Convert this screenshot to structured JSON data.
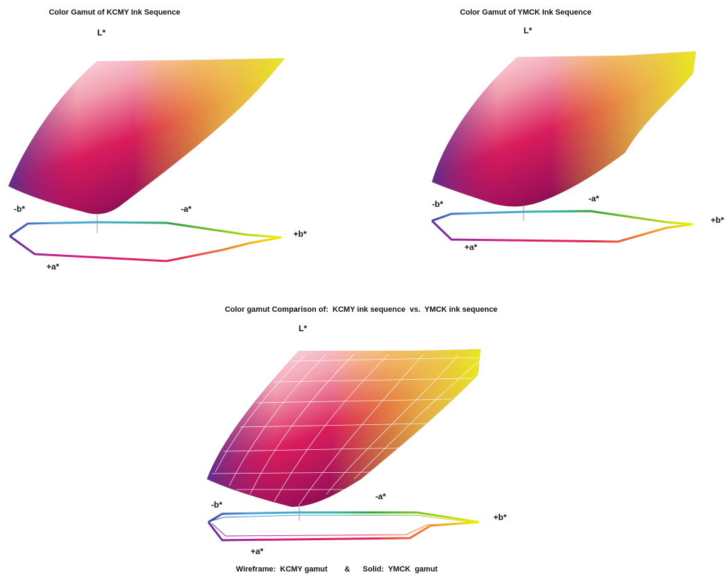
{
  "panels": [
    {
      "title": "Color Gamut of KCMY Ink Sequence",
      "labels": {
        "l": "L*",
        "minus_b": "-b*",
        "minus_a": "-a*",
        "plus_b": "+b*",
        "plus_a": "+a*"
      }
    },
    {
      "title": "Color Gamut of YMCK Ink Sequence",
      "labels": {
        "l": "L*",
        "minus_b": "-b*",
        "minus_a": "-a*",
        "plus_b": "+b*",
        "plus_a": "+a*"
      }
    },
    {
      "title": "Color gamut Comparison of:  KCMY ink sequence  vs.  YMCK ink sequence",
      "labels": {
        "l": "L*",
        "minus_b": "-b*",
        "minus_a": "-a*",
        "plus_b": "+b*",
        "plus_a": "+a*"
      }
    }
  ],
  "caption": "Wireframe:  KCMY gamut        &      Solid:  YMCK  gamut"
}
